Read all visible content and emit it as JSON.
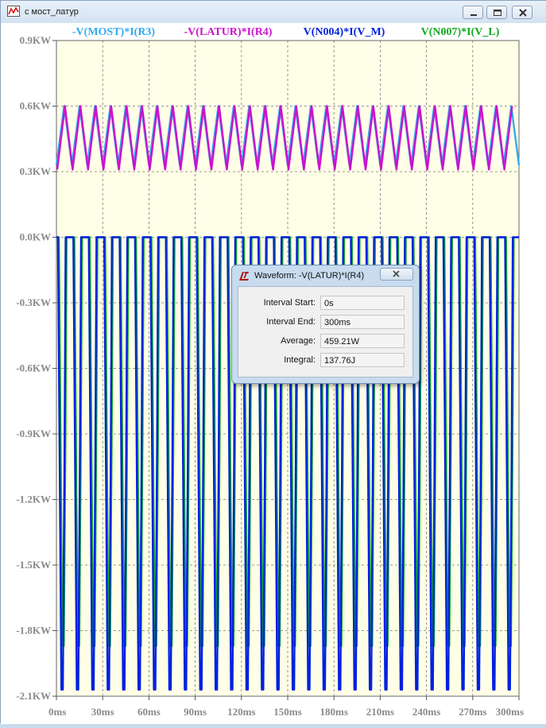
{
  "window": {
    "title": "с мост_латур"
  },
  "icons": {
    "app": "waveform-app-icon",
    "minimize": "minimize-icon",
    "maximize": "maximize-icon",
    "close": "close-icon"
  },
  "chart_data": {
    "type": "line",
    "title": "",
    "xlabel": "",
    "ylabel": "",
    "grid": true,
    "background": "#ffffe8",
    "xlim": [
      0,
      300
    ],
    "ylim": [
      -2.1,
      0.9
    ],
    "x_ticks": [
      "0ms",
      "30ms",
      "60ms",
      "90ms",
      "120ms",
      "150ms",
      "180ms",
      "210ms",
      "240ms",
      "270ms",
      "300ms"
    ],
    "y_ticks": [
      "0.9KW",
      "0.6KW",
      "0.3KW",
      "0.0KW",
      "-0.3KW",
      "-0.6KW",
      "-0.9KW",
      "-1.2KW",
      "-1.5KW",
      "-1.8KW",
      "-2.1KW"
    ],
    "series": [
      {
        "name": "-V(MOST)*I(R3)",
        "color": "#33aaee",
        "shape": "triangle",
        "periods": 30,
        "min": 0.33,
        "max": 0.6
      },
      {
        "name": "-V(LATUR)*I(R4)",
        "color": "#cc11cc",
        "shape": "triangle",
        "periods": 30,
        "min": 0.31,
        "max": 0.6
      },
      {
        "name": "V(N004)*I(V_M)",
        "color": "#0022dd",
        "shape": "pulse",
        "periods": 30,
        "min": -2.07,
        "max": 0.0
      },
      {
        "name": "V(N007)*I(V_L)",
        "color": "#11aa22",
        "shape": "pulse",
        "periods": 30,
        "min": -1.87,
        "max": 0.0
      }
    ]
  },
  "dialog": {
    "title": "Waveform: -V(LATUR)*I(R4)",
    "icon": "ltspice-logo-icon",
    "close_icon": "close-icon",
    "rows": [
      {
        "label": "Interval Start:",
        "value": "0s"
      },
      {
        "label": "Interval End:",
        "value": "300ms"
      },
      {
        "label": "Average:",
        "value": "459.21W"
      },
      {
        "label": "Integral:",
        "value": "137.76J"
      }
    ]
  }
}
